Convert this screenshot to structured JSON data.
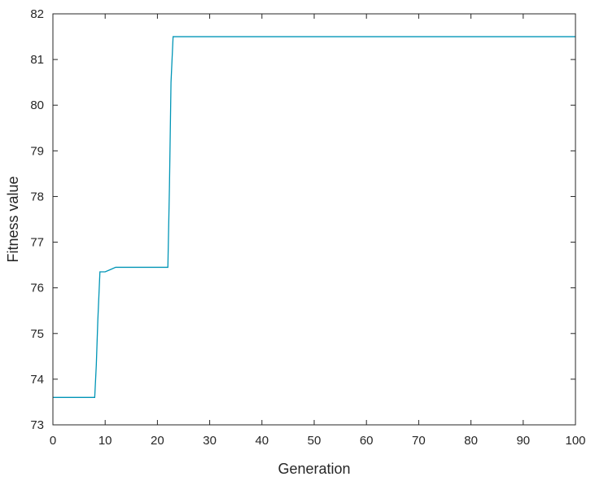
{
  "chart_data": {
    "type": "line",
    "title": "",
    "xlabel": "Generation",
    "ylabel": "Fitness value",
    "xlim": [
      0,
      100
    ],
    "ylim": [
      73,
      82
    ],
    "xticks": [
      0,
      10,
      20,
      30,
      40,
      50,
      60,
      70,
      80,
      90,
      100
    ],
    "yticks": [
      73,
      74,
      75,
      76,
      77,
      78,
      79,
      80,
      81,
      82
    ],
    "grid": false,
    "series": [
      {
        "color": "#0095b6",
        "x": [
          0,
          8,
          8.3,
          8.6,
          9,
          9.3,
          10,
          11,
          12,
          13,
          22,
          22.3,
          22.6,
          23,
          100
        ],
        "y": [
          73.6,
          73.6,
          74.3,
          75.3,
          76.35,
          76.35,
          76.35,
          76.4,
          76.45,
          76.45,
          76.45,
          78.2,
          80.5,
          81.5,
          81.5
        ]
      }
    ]
  }
}
